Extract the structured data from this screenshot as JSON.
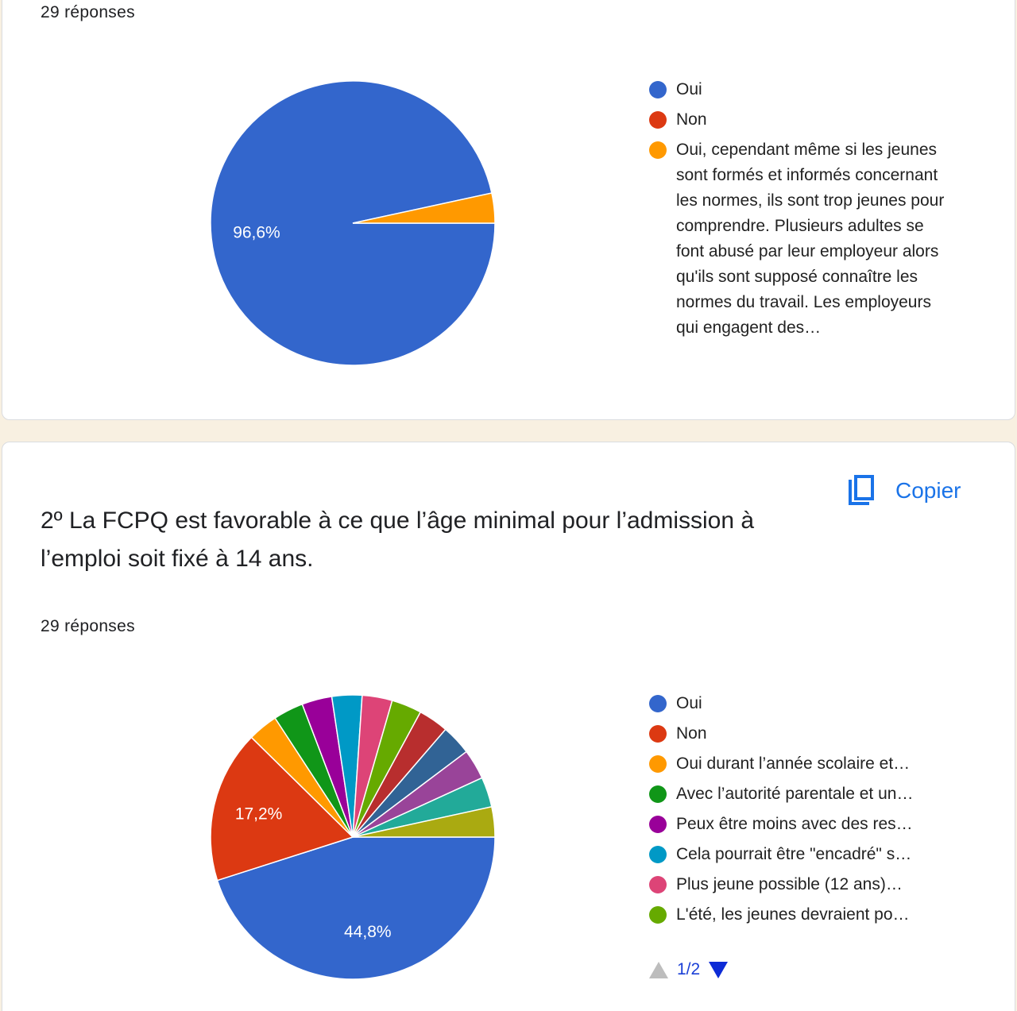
{
  "copy_button": "Copier",
  "chart_data": [
    {
      "type": "pie",
      "subtitle": "29 réponses",
      "categories": [
        "Oui",
        "Non",
        "Oui, cependant même si les jeunes sont formés et informés concernant les normes, ils sont trop jeunes pour comprendre. Plusieurs adultes se font abusé par leur employeur alors qu'ils sont supposé connaître les normes du travail. Les employeurs qui engagent des…"
      ],
      "values": [
        96.6,
        0,
        3.4
      ],
      "value_labels": [
        "96,6%",
        null,
        null
      ],
      "colors": [
        "#3366cc",
        "#dc3912",
        "#ff9900"
      ]
    },
    {
      "type": "pie",
      "title": "2º La FCPQ est favorable à ce que l’âge minimal pour l’admission à l’emploi soit fixé à 14 ans.",
      "subtitle": "29 réponses",
      "categories": [
        "Oui",
        "Non",
        "Oui durant l’année scolaire et…",
        "Avec l’autorité parentale et un…",
        "Peux être moins avec des res…",
        "Cela pourrait être \"encadré\" s…",
        "Plus jeune possible (12 ans)…",
        "L'été, les jeunes devraient po…",
        null,
        null,
        null,
        null,
        null
      ],
      "values": [
        44.8,
        17.2,
        3.4,
        3.4,
        3.4,
        3.4,
        3.4,
        3.4,
        3.4,
        3.4,
        3.4,
        3.4,
        3.4
      ],
      "value_labels": [
        "44,8%",
        "17,2%",
        null,
        null,
        null,
        null,
        null,
        null,
        null,
        null,
        null,
        null,
        null
      ],
      "colors": [
        "#3366cc",
        "#dc3912",
        "#ff9900",
        "#109618",
        "#990099",
        "#0099c6",
        "#dd4477",
        "#66aa00",
        "#b82e2e",
        "#316395",
        "#994499",
        "#22aa99",
        "#aaaa11"
      ],
      "legend_page": "1/2"
    }
  ]
}
